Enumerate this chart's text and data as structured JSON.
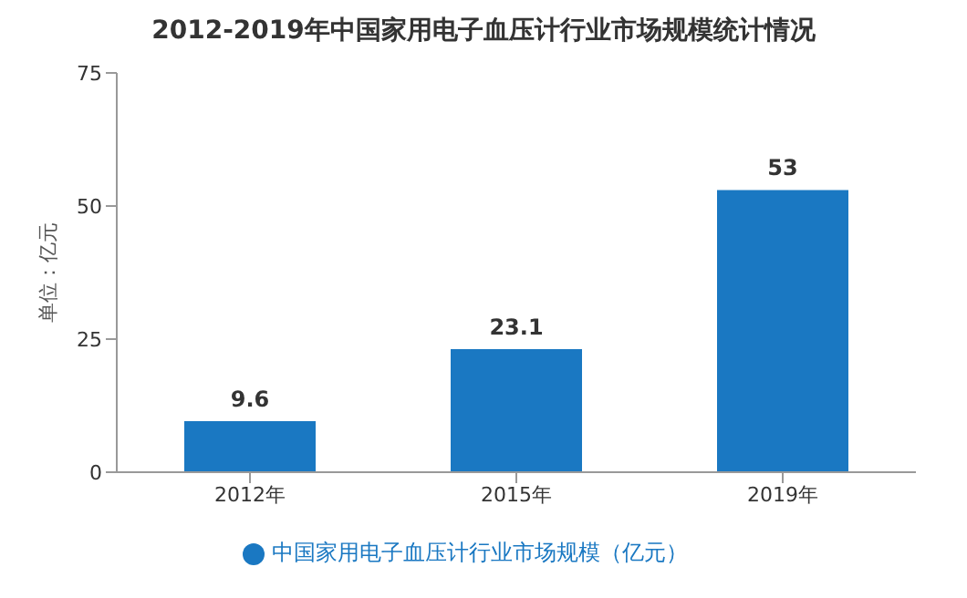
{
  "chart_data": {
    "type": "bar",
    "title": "2012-2019年中国家用电子血压计行业市场规模统计情况",
    "ylabel": "单位：亿元",
    "categories": [
      "2012年",
      "2015年",
      "2019年"
    ],
    "series": [
      {
        "name": "中国家用电子血压计行业市场规模（亿元）",
        "color": "#1a78c2",
        "values": [
          9.6,
          23.1,
          53
        ]
      }
    ],
    "ylim": [
      0,
      75
    ],
    "yticks": [
      0,
      25,
      50,
      75
    ],
    "grid": false,
    "legend": "bottom",
    "data_labels": true
  }
}
